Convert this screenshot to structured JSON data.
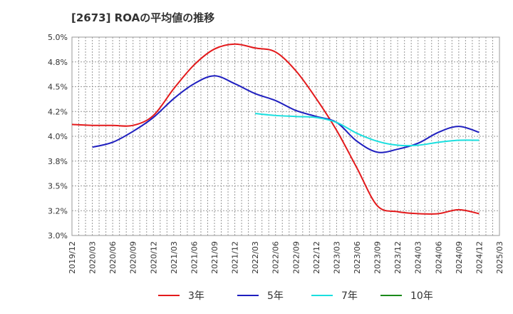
{
  "title": "[2673]  ROAの平均値の推移",
  "chart_data": {
    "type": "line",
    "title": "[2673]  ROAの平均値の推移",
    "xlabel": "",
    "ylabel": "",
    "x_categories": [
      "2019/12",
      "2020/03",
      "2020/06",
      "2020/09",
      "2020/12",
      "2021/03",
      "2021/06",
      "2021/09",
      "2021/12",
      "2022/03",
      "2022/06",
      "2022/09",
      "2022/12",
      "2023/03",
      "2023/06",
      "2023/09",
      "2023/12",
      "2024/03",
      "2024/06",
      "2024/09",
      "2024/12",
      "2025/03"
    ],
    "y_ticks": [
      "5.0%",
      "4.8%",
      "4.5%",
      "4.2%",
      "4.0%",
      "3.8%",
      "3.5%",
      "3.2%",
      "3.0%"
    ],
    "y_tick_values": [
      5.0,
      4.75,
      4.5,
      4.25,
      4.0,
      3.75,
      3.5,
      3.25,
      3.0
    ],
    "ylim": [
      3.0,
      5.0
    ],
    "grid": true,
    "legend_position": "bottom",
    "series": [
      {
        "name": "3年",
        "color": "#e31a1c",
        "x": [
          "2019/12",
          "2020/03",
          "2020/06",
          "2020/09",
          "2020/12",
          "2021/03",
          "2021/06",
          "2021/09",
          "2021/12",
          "2022/03",
          "2022/06",
          "2022/09",
          "2022/12",
          "2023/03",
          "2023/06",
          "2023/09",
          "2023/12",
          "2024/03",
          "2024/06",
          "2024/09",
          "2024/12"
        ],
        "values": [
          4.12,
          4.11,
          4.11,
          4.11,
          4.21,
          4.48,
          4.72,
          4.88,
          4.93,
          4.89,
          4.85,
          4.66,
          4.38,
          4.06,
          3.68,
          3.3,
          3.24,
          3.22,
          3.22,
          3.26,
          3.22
        ]
      },
      {
        "name": "5年",
        "color": "#1f1fbf",
        "x": [
          "2020/03",
          "2020/06",
          "2020/09",
          "2020/12",
          "2021/03",
          "2021/06",
          "2021/09",
          "2021/12",
          "2022/03",
          "2022/06",
          "2022/09",
          "2022/12",
          "2023/03",
          "2023/06",
          "2023/09",
          "2023/12",
          "2024/03",
          "2024/06",
          "2024/09",
          "2024/12"
        ],
        "values": [
          3.89,
          3.94,
          4.05,
          4.19,
          4.38,
          4.53,
          4.61,
          4.53,
          4.43,
          4.36,
          4.26,
          4.2,
          4.14,
          3.95,
          3.84,
          3.87,
          3.93,
          4.04,
          4.1,
          4.04
        ]
      },
      {
        "name": "7年",
        "color": "#1adfdf",
        "x": [
          "2022/03",
          "2022/06",
          "2022/09",
          "2022/12",
          "2023/03",
          "2023/06",
          "2023/09",
          "2023/12",
          "2024/03",
          "2024/06",
          "2024/09",
          "2024/12"
        ],
        "values": [
          4.23,
          4.21,
          4.2,
          4.19,
          4.14,
          4.03,
          3.95,
          3.91,
          3.91,
          3.94,
          3.96,
          3.96
        ]
      },
      {
        "name": "10年",
        "color": "#1a8a1a",
        "x": [],
        "values": []
      }
    ]
  }
}
